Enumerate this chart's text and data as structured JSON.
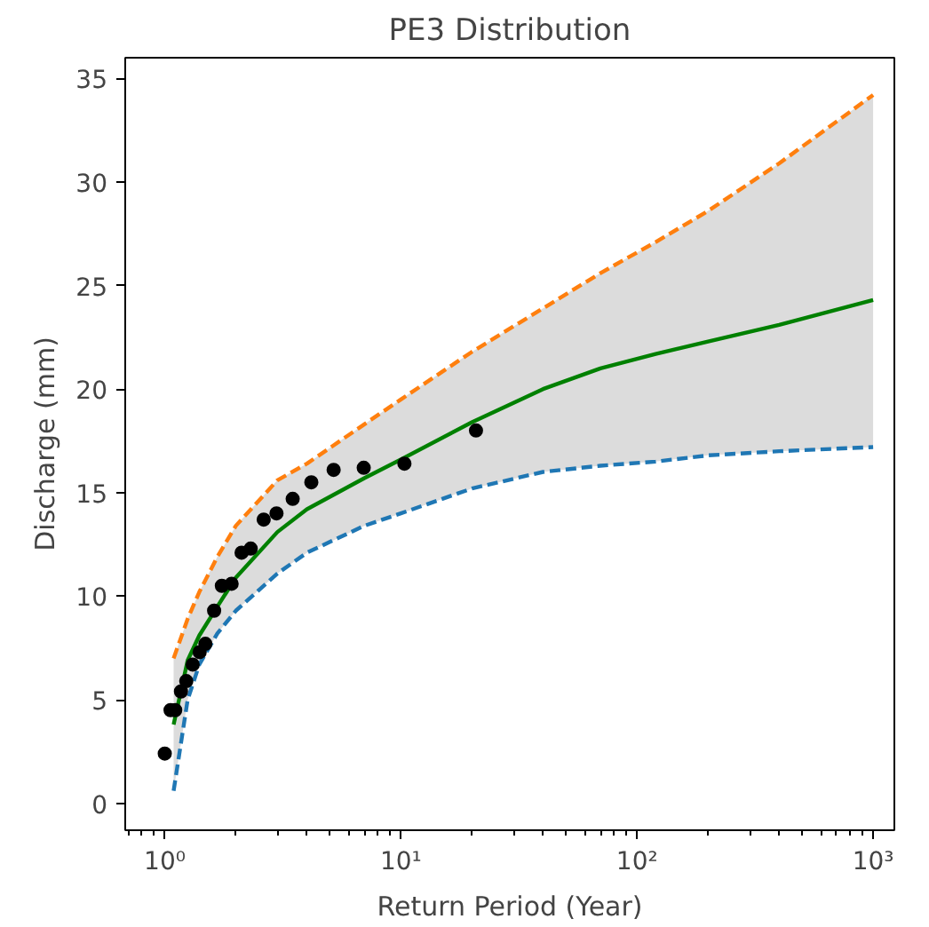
{
  "chart_data": {
    "type": "line",
    "title": "PE3 Distribution",
    "xlabel": "Return Period (Year)",
    "ylabel": "Discharge (mm)",
    "log": "x",
    "grid": false,
    "xlim": [
      0.68,
      1230
    ],
    "ylim": [
      -1.3,
      36
    ],
    "xticks": [
      {
        "value": 1,
        "label": "10⁰"
      },
      {
        "value": 10,
        "label": "10¹"
      },
      {
        "value": 100,
        "label": "10²"
      },
      {
        "value": 1000,
        "label": "10³"
      }
    ],
    "yticks": [
      0,
      5,
      10,
      15,
      20,
      25,
      30,
      35
    ],
    "series": [
      {
        "color": "#008000",
        "line_style": "solid",
        "x": [
          1.09,
          1.25,
          1.4,
          1.67,
          2,
          3,
          4,
          7,
          10,
          20,
          40,
          70,
          120,
          200,
          400,
          1000
        ],
        "values": [
          3.8,
          6.9,
          8.1,
          9.5,
          10.9,
          13.1,
          14.2,
          15.7,
          16.6,
          18.4,
          20.0,
          21.0,
          21.7,
          22.3,
          23.1,
          24.3
        ],
        "lower": [
          0.6,
          5.0,
          6.7,
          8.2,
          9.3,
          11.1,
          12.1,
          13.4,
          14.0,
          15.2,
          16.0,
          16.3,
          16.5,
          16.8,
          17.0,
          17.2
        ],
        "upper": [
          7.0,
          8.9,
          10.2,
          11.9,
          13.4,
          15.6,
          16.4,
          18.3,
          19.5,
          21.8,
          23.9,
          25.6,
          27.1,
          28.6,
          30.9,
          34.2
        ]
      },
      {
        "color": "#ff7f0e",
        "line_style": "dashed",
        "x": [
          1.09,
          1.25,
          1.4,
          1.67,
          2,
          3,
          4,
          7,
          10,
          20,
          40,
          70,
          120,
          200,
          400,
          1000
        ],
        "values": [
          7.0,
          8.9,
          10.2,
          11.9,
          13.4,
          15.6,
          16.4,
          18.3,
          19.5,
          21.8,
          23.9,
          25.6,
          27.1,
          28.6,
          30.9,
          34.2
        ]
      },
      {
        "color": "#1f77b4",
        "line_style": "dashed",
        "x": [
          1.09,
          1.25,
          1.4,
          1.67,
          2,
          3,
          4,
          7,
          10,
          20,
          40,
          70,
          120,
          200,
          400,
          1000
        ],
        "values": [
          0.6,
          5.0,
          6.7,
          8.2,
          9.3,
          11.1,
          12.1,
          13.4,
          14.0,
          15.2,
          16.0,
          16.3,
          16.5,
          16.8,
          17.0,
          17.2
        ]
      },
      {
        "type": "scatter",
        "marker": "circle",
        "color": "#000000",
        "x": [
          1.0,
          1.058,
          1.107,
          1.171,
          1.233,
          1.313,
          1.405,
          1.486,
          1.618,
          1.745,
          1.919,
          2.115,
          2.312,
          2.624,
          2.973,
          3.481,
          4.175,
          5.19,
          6.96,
          10.35,
          20.8
        ],
        "values": [
          2.4,
          4.5,
          4.5,
          5.4,
          5.9,
          6.7,
          7.3,
          7.7,
          9.3,
          10.5,
          10.6,
          12.1,
          12.3,
          13.7,
          14.0,
          14.7,
          15.5,
          16.1,
          16.2,
          16.4,
          18.0
        ]
      }
    ]
  }
}
